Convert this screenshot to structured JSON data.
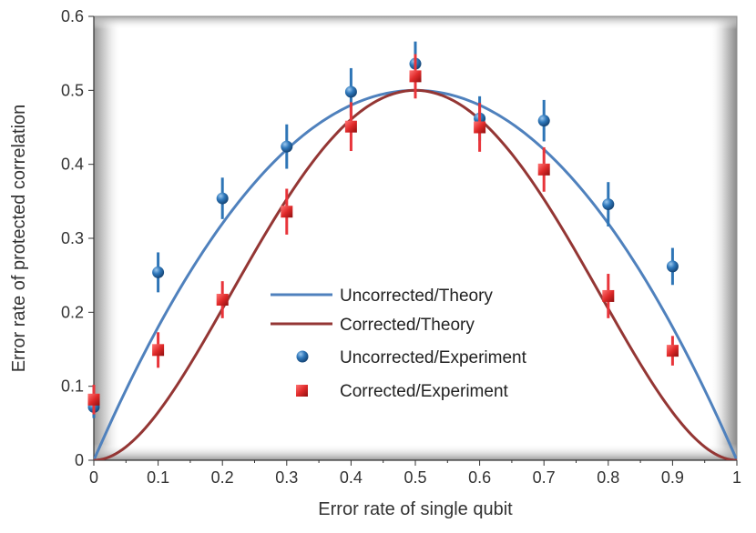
{
  "chart_data": {
    "type": "scatter",
    "title": "",
    "xlabel": "Error rate of single qubit",
    "ylabel": "Error rate of protected correlation",
    "xlim": [
      0,
      1
    ],
    "ylim": [
      0,
      0.6
    ],
    "x_ticks": [
      "0",
      "0.1",
      "0.2",
      "0.3",
      "0.4",
      "0.5",
      "0.6",
      "0.7",
      "0.8",
      "0.9",
      "1"
    ],
    "y_ticks": [
      "0",
      "0.1",
      "0.2",
      "0.3",
      "0.4",
      "0.5",
      "0.6"
    ],
    "grid": false,
    "legend_position": "center",
    "series": [
      {
        "name": "Uncorrected/Theory",
        "kind": "line",
        "color": "#4f81bd",
        "formula": "2*p*(1-p)",
        "x": [
          0,
          0.05,
          0.1,
          0.15,
          0.2,
          0.25,
          0.3,
          0.35,
          0.4,
          0.45,
          0.5,
          0.55,
          0.6,
          0.65,
          0.7,
          0.75,
          0.8,
          0.85,
          0.9,
          0.95,
          1
        ],
        "y": [
          0,
          0.095,
          0.18,
          0.255,
          0.32,
          0.375,
          0.42,
          0.455,
          0.48,
          0.495,
          0.5,
          0.495,
          0.48,
          0.455,
          0.42,
          0.375,
          0.32,
          0.255,
          0.18,
          0.095,
          0
        ]
      },
      {
        "name": "Corrected/Theory",
        "kind": "line",
        "color": "#943634",
        "formula": "2*(2p(1-p))^2",
        "x": [
          0,
          0.05,
          0.1,
          0.15,
          0.2,
          0.25,
          0.3,
          0.35,
          0.4,
          0.45,
          0.5,
          0.55,
          0.6,
          0.65,
          0.7,
          0.75,
          0.8,
          0.85,
          0.9,
          0.95,
          1
        ],
        "y": [
          0,
          0.018,
          0.065,
          0.13,
          0.205,
          0.281,
          0.353,
          0.414,
          0.461,
          0.49,
          0.5,
          0.49,
          0.461,
          0.414,
          0.353,
          0.281,
          0.205,
          0.13,
          0.065,
          0.018,
          0
        ]
      },
      {
        "name": "Uncorrected/Experiment",
        "kind": "points",
        "marker": "circle",
        "color": "#2e75b6",
        "errcolor": "#2e75b6",
        "x": [
          0,
          0.1,
          0.2,
          0.3,
          0.4,
          0.5,
          0.6,
          0.7,
          0.8,
          0.9
        ],
        "y": [
          0.072,
          0.254,
          0.354,
          0.424,
          0.498,
          0.536,
          0.462,
          0.459,
          0.346,
          0.262
        ],
        "err": [
          0.015,
          0.027,
          0.028,
          0.03,
          0.032,
          0.03,
          0.03,
          0.028,
          0.03,
          0.025
        ]
      },
      {
        "name": "Corrected/Experiment",
        "kind": "points",
        "marker": "square",
        "color": "#e03030",
        "errcolor": "#e8343a",
        "x": [
          0,
          0.1,
          0.2,
          0.3,
          0.4,
          0.5,
          0.6,
          0.7,
          0.8,
          0.9
        ],
        "y": [
          0.082,
          0.149,
          0.217,
          0.336,
          0.451,
          0.519,
          0.45,
          0.393,
          0.222,
          0.148
        ],
        "err": [
          0.02,
          0.024,
          0.025,
          0.031,
          0.033,
          0.03,
          0.033,
          0.03,
          0.03,
          0.02
        ]
      }
    ]
  }
}
